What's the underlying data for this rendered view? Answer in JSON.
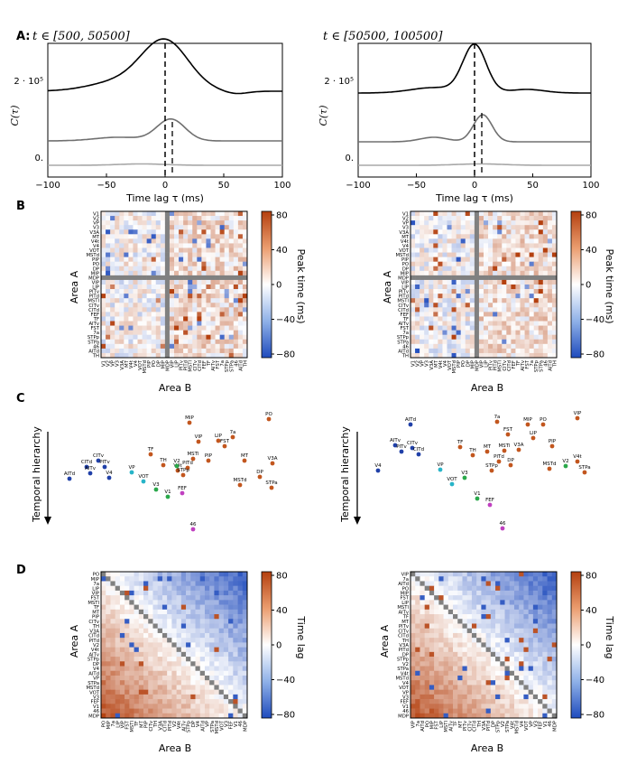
{
  "panel_letters": {
    "A": "A:",
    "B": "B",
    "C": "C",
    "D": "D"
  },
  "panel_a": {
    "left_title": "t ∈ [500, 50500]",
    "right_title": "t ∈ [50500, 100500]",
    "ylabel": "C(τ)",
    "xlabel": "Time lag τ (ms)",
    "ytick_labels": [
      "2 · 10⁵",
      "0."
    ],
    "xtick_labels": [
      "−100",
      "−50",
      "0",
      "50",
      "100"
    ],
    "colors": {
      "black": "#000000",
      "dark": "#707070",
      "light": "#a8a8a8"
    }
  },
  "panel_b": {
    "ylabel": "Area A",
    "xlabel": "Area B",
    "colorbar_label": "Peak time (ms)",
    "colorbar_ticks": [
      "80",
      "40",
      "0",
      "−40",
      "−80"
    ],
    "areas": [
      "V1",
      "V2",
      "VP",
      "V3",
      "V3A",
      "MT",
      "V4t",
      "V4",
      "VOT",
      "MSTd",
      "PIP",
      "PO",
      "DP",
      "MIP",
      "MDP",
      "VIP",
      "LIP",
      "PITv",
      "PITd",
      "MSTl",
      "CITv",
      "CITd",
      "FEF",
      "TF",
      "AITv",
      "FST",
      "7a",
      "STPp",
      "STPa",
      "46",
      "AITd",
      "TH"
    ]
  },
  "panel_c": {
    "ylabel": "Temporal hierarchy",
    "left_labels": [
      "MIP",
      "PO",
      "7a",
      "LIP",
      "FST",
      "VIP",
      "MSTl",
      "PIP",
      "PITd",
      "V4t",
      "MT",
      "V3A",
      "TF",
      "TH",
      "V2",
      "STPp",
      "DP",
      "MSTd",
      "STPa",
      "VP",
      "VOT",
      "V3",
      "V1",
      "FEF",
      "CITv",
      "CITd",
      "PITv",
      "AITv",
      "V4",
      "AITd",
      "46"
    ],
    "right_labels": [
      "AITd",
      "7a",
      "MIP",
      "PO",
      "VIP",
      "FST",
      "LIP",
      "PIP",
      "TF",
      "MT",
      "MSTl",
      "V3A",
      "TH",
      "PITd",
      "DP",
      "STPp",
      "MSTd",
      "V2",
      "V4t",
      "STPa",
      "AITv",
      "CITv",
      "PITv",
      "CITd",
      "V4",
      "VP",
      "V3",
      "VOT",
      "V1",
      "FEF",
      "46"
    ]
  },
  "panel_d": {
    "ylabel": "Area A",
    "xlabel": "Area B",
    "colorbar_label": "Time lag",
    "colorbar_ticks": [
      "80",
      "40",
      "0",
      "−40",
      "−80"
    ],
    "left_areas": [
      "PO",
      "MIP",
      "7a",
      "LIP",
      "VIP",
      "FST",
      "MSTl",
      "TF",
      "MT",
      "PIP",
      "CITv",
      "TH",
      "V3A",
      "CITd",
      "PITd",
      "V2",
      "V4t",
      "AITv",
      "STPp",
      "DP",
      "V4",
      "AITd",
      "VP",
      "STPa",
      "MSTd",
      "VOT",
      "V3",
      "FEF",
      "V1",
      "46",
      "MDP"
    ],
    "right_areas": [
      "VIP",
      "7a",
      "AITd",
      "PO",
      "MIP",
      "FST",
      "LIP",
      "MSTl",
      "AITv",
      "TF",
      "MT",
      "PITv",
      "CITv",
      "CITd",
      "TH",
      "V3A",
      "PITd",
      "DP",
      "STPp",
      "V2",
      "STPa",
      "V4t",
      "MSTd",
      "V4",
      "VOT",
      "VP",
      "V3",
      "FEF",
      "V1",
      "46",
      "MDP"
    ]
  }
}
